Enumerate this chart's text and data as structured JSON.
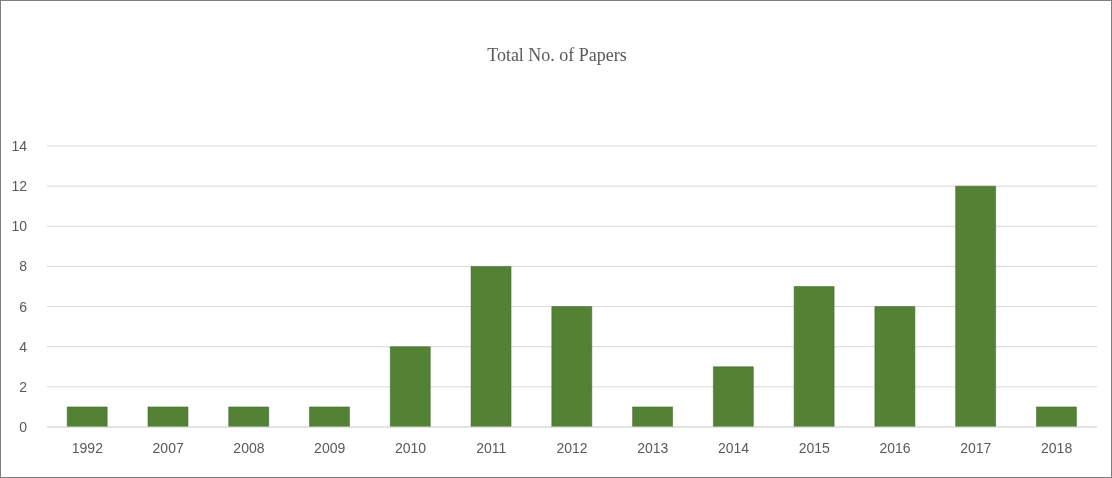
{
  "chart_data": {
    "type": "bar",
    "title": "Total No. of Papers",
    "categories": [
      "1992",
      "2007",
      "2008",
      "2009",
      "2010",
      "2011",
      "2012",
      "2013",
      "2014",
      "2015",
      "2016",
      "2017",
      "2018"
    ],
    "values": [
      1,
      1,
      1,
      1,
      4,
      8,
      6,
      1,
      3,
      7,
      6,
      12,
      1
    ],
    "color": "#548235",
    "ylim": [
      0,
      14
    ],
    "yticks": [
      0,
      2,
      4,
      6,
      8,
      10,
      12,
      14
    ],
    "grid": "y"
  }
}
